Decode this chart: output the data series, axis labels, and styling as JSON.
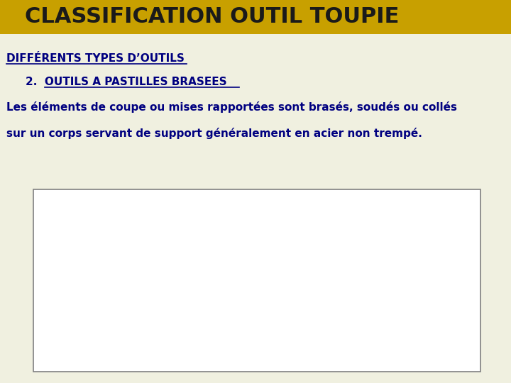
{
  "title": "CLASSIFICATION OUTIL TOUPIE",
  "title_bg_color": "#C8A000",
  "title_text_color": "#1a1a1a",
  "title_fontsize": 22,
  "header1": "DIFFÉRENTS TYPES D’OUTILS",
  "header1_fontsize": 11,
  "header1_color": "#000080",
  "header2": "2.  OUTILS A PASTILLES BRASEES",
  "header2_fontsize": 11,
  "header2_color": "#000080",
  "body_text_line1": "Les éléments de coupe ou mises rapportées sont brasés, soudés ou collés",
  "body_text_line2": "sur un corps servant de support généralement en acier non trempé.",
  "body_fontsize": 11,
  "body_color": "#000080",
  "bg_color": "#f0f0e0",
  "box_color": "#ffffff",
  "box_edge_color": "#808080"
}
